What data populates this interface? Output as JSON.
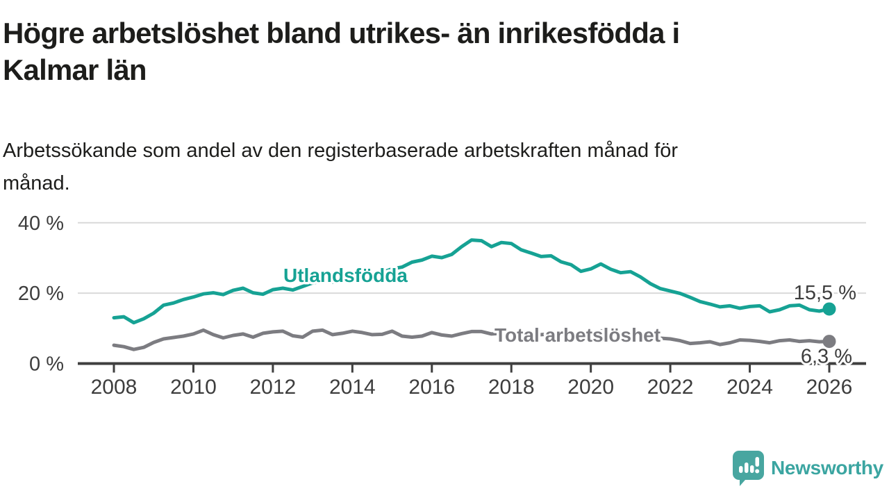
{
  "title_lines": [
    "Högre arbetslöshet bland utrikes- än inrikesfödda i",
    "Kalmar län"
  ],
  "subtitle_lines": [
    "Arbetssökande som andel av den registerbaserade arbetskraften månad för",
    "månad."
  ],
  "footer": {
    "brand": "Newsworthy"
  },
  "colors": {
    "accent_teal": "#16a294",
    "line_gray": "#7c7c81",
    "text_dark": "#1d1d1b",
    "axis_text": "#3d3d3d",
    "axis_line": "#3f3f3f",
    "gridline": "#d9d9d9",
    "brand_teal": "#3ba5a1"
  },
  "chart_data": {
    "type": "line",
    "title": "Högre arbetslöshet bland utrikes- än inrikesfödda i Kalmar län",
    "subtitle": "Arbetssökande som andel av den registerbaserade arbetskraften månad för månad.",
    "x_axis": {
      "start": 2008,
      "step": 0.25,
      "range": [
        2008,
        2026
      ],
      "ticks": [
        {
          "value": 2008,
          "label": "2008"
        },
        {
          "value": 2010,
          "label": "2010"
        },
        {
          "value": 2012,
          "label": "2012"
        },
        {
          "value": 2014,
          "label": "2014"
        },
        {
          "value": 2016,
          "label": "2016"
        },
        {
          "value": 2018,
          "label": "2018"
        },
        {
          "value": 2020,
          "label": "2020"
        },
        {
          "value": 2022,
          "label": "2022"
        },
        {
          "value": 2024,
          "label": "2024"
        },
        {
          "value": 2026,
          "label": "2026"
        }
      ]
    },
    "y_axis": {
      "unit": "%",
      "range": [
        0,
        43
      ],
      "grid": true,
      "gridline_values": [
        20,
        40
      ],
      "ticks": [
        {
          "value": 0,
          "label": "0 %"
        },
        {
          "value": 20,
          "label": "20 %"
        },
        {
          "value": 40,
          "label": "40 %"
        }
      ]
    },
    "legend_position": "inline-labels",
    "series": [
      {
        "name": "Total arbetslöshet",
        "color": "#7c7c81",
        "end_label": "6,3 %",
        "end_value": 6.3,
        "values": [
          5.2,
          4.8,
          4.0,
          4.6,
          6.0,
          7.0,
          7.4,
          7.8,
          8.4,
          9.5,
          8.2,
          7.3,
          8.0,
          8.4,
          7.5,
          8.6,
          9.0,
          9.2,
          7.9,
          7.5,
          9.2,
          9.5,
          8.2,
          8.6,
          9.2,
          8.8,
          8.2,
          8.3,
          9.2,
          7.8,
          7.5,
          7.8,
          8.8,
          8.1,
          7.8,
          8.5,
          9.1,
          9.1,
          8.4,
          8.6,
          8.8,
          8.4,
          8.0,
          8.2,
          8.4,
          8.0,
          7.8,
          7.8,
          8.2,
          9.3,
          9.0,
          8.7,
          8.6,
          8.2,
          7.6,
          7.2,
          7.0,
          6.5,
          5.7,
          5.9,
          6.2,
          5.4,
          5.9,
          6.7,
          6.6,
          6.3,
          5.9,
          6.5,
          6.7,
          6.3,
          6.5,
          6.2,
          6.3
        ]
      },
      {
        "name": "Utlandsfödda",
        "color": "#16a294",
        "end_label": "15,5 %",
        "end_value": 15.5,
        "values": [
          13.0,
          13.3,
          11.6,
          12.7,
          14.3,
          16.6,
          17.2,
          18.2,
          18.9,
          19.8,
          20.1,
          19.6,
          20.8,
          21.4,
          20.1,
          19.7,
          21.0,
          21.4,
          20.9,
          21.9,
          22.9,
          23.4,
          23.1,
          23.9,
          24.8,
          25.4,
          25.1,
          25.9,
          26.9,
          27.4,
          28.8,
          29.4,
          30.5,
          30.1,
          31.0,
          33.2,
          35.1,
          34.9,
          33.2,
          34.4,
          34.1,
          32.3,
          31.4,
          30.4,
          30.6,
          28.9,
          28.1,
          26.2,
          26.9,
          28.3,
          26.8,
          25.8,
          26.1,
          24.6,
          22.7,
          21.3,
          20.6,
          19.9,
          18.8,
          17.6,
          16.9,
          16.1,
          16.4,
          15.7,
          16.2,
          16.4,
          14.7,
          15.3,
          16.4,
          16.6,
          15.3,
          14.9,
          15.5
        ]
      }
    ]
  }
}
